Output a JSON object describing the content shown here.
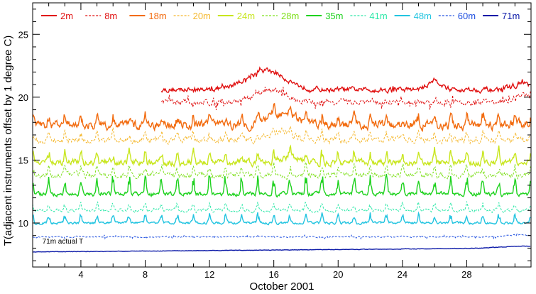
{
  "chart_data": {
    "type": "line",
    "title": "",
    "xlabel": "October 2001",
    "ylabel": "T(adjacent instruments offset by 1 degree C)",
    "xlim": [
      1,
      32
    ],
    "ylim": [
      6.5,
      27.5
    ],
    "xticks": [
      4,
      8,
      12,
      16,
      20,
      24,
      28
    ],
    "yticks": [
      10,
      15,
      20,
      25
    ],
    "grid": false,
    "legend_position": "top",
    "annotation": "71m actual T",
    "series": [
      {
        "name": "2m",
        "color": "#e01010",
        "dash": "solid",
        "start": 9.0,
        "base": 20.6,
        "noise": 0.3,
        "spike": 0.25,
        "freq": 0,
        "bumps": [
          [
            15.5,
            3.0,
            1.2
          ],
          [
            26,
            1.5,
            0.4
          ],
          [
            31.5,
            1.0,
            0.6
          ]
        ]
      },
      {
        "name": "8m",
        "color": "#e01010",
        "dash": "dashed",
        "start": 9.0,
        "base": 19.6,
        "noise": 0.35,
        "spike": 0.5,
        "freq": 0,
        "bumps": [
          [
            15.8,
            2.0,
            0.9
          ],
          [
            31.5,
            1.0,
            0.6
          ]
        ]
      },
      {
        "name": "18m",
        "color": "#f26b0f",
        "dash": "solid",
        "start": 1.0,
        "base": 17.8,
        "noise": 0.55,
        "spike": 0.6,
        "freq": 1.0,
        "bumps": [
          [
            16.5,
            1.6,
            0.9
          ]
        ]
      },
      {
        "name": "20m",
        "color": "#f5b82e",
        "dash": "dashed",
        "start": 1.0,
        "base": 16.6,
        "noise": 0.4,
        "spike": 0.5,
        "freq": 1.0,
        "bumps": [
          [
            16.5,
            1.4,
            0.7
          ]
        ]
      },
      {
        "name": "24m",
        "color": "#c8e61e",
        "dash": "solid",
        "start": 1.0,
        "base": 14.8,
        "noise": 0.4,
        "spike": 0.8,
        "freq": 1.0,
        "bumps": [
          [
            17,
            1.0,
            0.6
          ]
        ]
      },
      {
        "name": "28m",
        "color": "#7fe01c",
        "dash": "dashed",
        "start": 1.0,
        "base": 13.8,
        "noise": 0.35,
        "spike": 0.6,
        "freq": 1.0,
        "bumps": []
      },
      {
        "name": "35m",
        "color": "#1ed21e",
        "dash": "solid",
        "start": 1.0,
        "base": 12.3,
        "noise": 0.25,
        "spike": 1.2,
        "freq": 1.0,
        "bumps": []
      },
      {
        "name": "41m",
        "color": "#2ce8a8",
        "dash": "dashed",
        "start": 1.0,
        "base": 11.0,
        "noise": 0.2,
        "spike": 0.5,
        "freq": 1.0,
        "bumps": []
      },
      {
        "name": "48m",
        "color": "#22c4e0",
        "dash": "solid",
        "start": 1.0,
        "base": 10.0,
        "noise": 0.15,
        "spike": 0.6,
        "freq": 1.0,
        "bumps": []
      },
      {
        "name": "60m",
        "color": "#2050e0",
        "dash": "dashed",
        "start": 1.0,
        "base": 8.9,
        "noise": 0.08,
        "spike": 0.15,
        "freq": 0,
        "bumps": [
          [
            31.5,
            0.3,
            0.8
          ]
        ]
      },
      {
        "name": "71m",
        "color": "#0c1aa8",
        "dash": "solid",
        "start": 1.0,
        "base": 7.7,
        "noise": 0.03,
        "spike": 0.0,
        "freq": 0,
        "bumps": [
          [
            31.5,
            0.3,
            1.5
          ]
        ],
        "trend": 0.01
      }
    ]
  }
}
